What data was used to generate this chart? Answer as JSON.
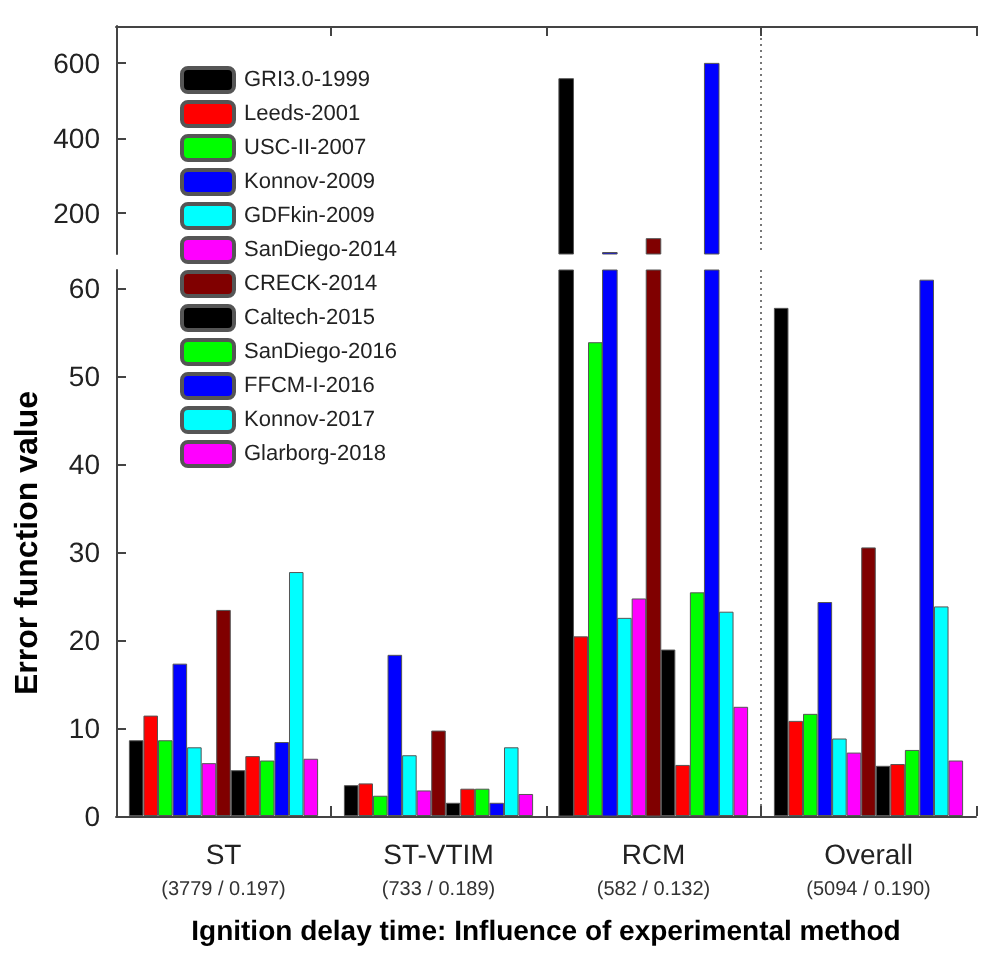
{
  "chart_data": [
    {
      "type": "bar",
      "categories": [
        null,
        null,
        null,
        null
      ],
      "ylim": [
        90,
        700
      ],
      "yticks": [
        200,
        400,
        600
      ],
      "tick_labels": "y",
      "series": [
        {
          "color": "#000000",
          "values": [
            null,
            null,
            559,
            null
          ]
        },
        {
          "values": [
            null,
            null,
            null,
            null
          ]
        },
        {
          "values": [
            null,
            null,
            null,
            null
          ]
        },
        {
          "color": "#0000ff",
          "values": [
            null,
            null,
            94,
            null
          ]
        },
        {
          "values": [
            null,
            null,
            null,
            null
          ]
        },
        {
          "values": [
            null,
            null,
            null,
            null
          ]
        },
        {
          "color": "#800000",
          "values": [
            null,
            null,
            131,
            null
          ]
        },
        {
          "values": [
            null,
            null,
            null,
            null
          ]
        },
        {
          "values": [
            null,
            null,
            null,
            null
          ]
        },
        {
          "values": [
            null,
            null,
            null,
            null
          ]
        },
        {
          "color": "#0000ff",
          "values": [
            null,
            null,
            600,
            null
          ]
        },
        {
          "values": [
            null,
            null,
            null,
            null
          ]
        },
        {
          "values": [
            null,
            null,
            null,
            null
          ]
        }
      ]
    },
    {
      "type": "bar",
      "xlabel": "Ignition delay time: Influence of experimental method",
      "ylabel": "Error function value",
      "annotations": [
        "(3779 / 0.197)",
        "(733 / 0.189)",
        "(582 / 0.132)",
        "(5094 / 0.190)"
      ],
      "categories": [
        "ST",
        "ST-VTIM",
        "RCM",
        "Overall"
      ],
      "ylim": [
        0,
        62
      ],
      "yticks": [
        0,
        10,
        20,
        30,
        40,
        50,
        60
      ],
      "legend": "top left",
      "series": [
        {
          "name": "GRI3.0-1999",
          "color": "#000000",
          "values": [
            8.6,
            3.5,
            null,
            57.7
          ]
        },
        {
          "name": "Leeds-2001",
          "color": "#ff0000",
          "values": [
            11.4,
            3.7,
            20.4,
            10.8
          ]
        },
        {
          "name": "USC-II-2007",
          "color": "#00ff00",
          "values": [
            8.6,
            2.3,
            53.8,
            11.6
          ]
        },
        {
          "name": "Konnov-2009",
          "color": "#0000ff",
          "values": [
            17.3,
            18.3,
            null,
            24.3
          ]
        },
        {
          "name": "GDFkin-2009",
          "color": "#00ffff",
          "values": [
            7.8,
            6.9,
            22.5,
            8.8
          ]
        },
        {
          "name": "SanDiego-2014",
          "color": "#ff00ff",
          "values": [
            6.0,
            2.9,
            24.7,
            7.2
          ]
        },
        {
          "name": "CRECK-2014",
          "color": "#800000",
          "values": [
            23.4,
            9.7,
            null,
            30.5
          ]
        },
        {
          "name": "Caltech-2015",
          "color": "#000000",
          "values": [
            5.2,
            1.5,
            18.9,
            5.7
          ]
        },
        {
          "color": "#ff0000",
          "values": [
            6.8,
            3.1,
            5.8,
            5.9
          ]
        },
        {
          "name": "SanDiego-2016",
          "color": "#00ff00",
          "values": [
            6.3,
            3.1,
            25.4,
            7.5
          ]
        },
        {
          "name": "FFCM-I-2016",
          "color": "#0000ff",
          "values": [
            8.4,
            1.5,
            null,
            60.9
          ]
        },
        {
          "name": "Konnov-2017",
          "color": "#00ffff",
          "values": [
            27.7,
            7.8,
            23.2,
            23.8
          ]
        },
        {
          "name": "Glarborg-2018",
          "color": "#ff00ff",
          "values": [
            6.5,
            2.5,
            12.4,
            6.3
          ]
        }
      ]
    }
  ]
}
